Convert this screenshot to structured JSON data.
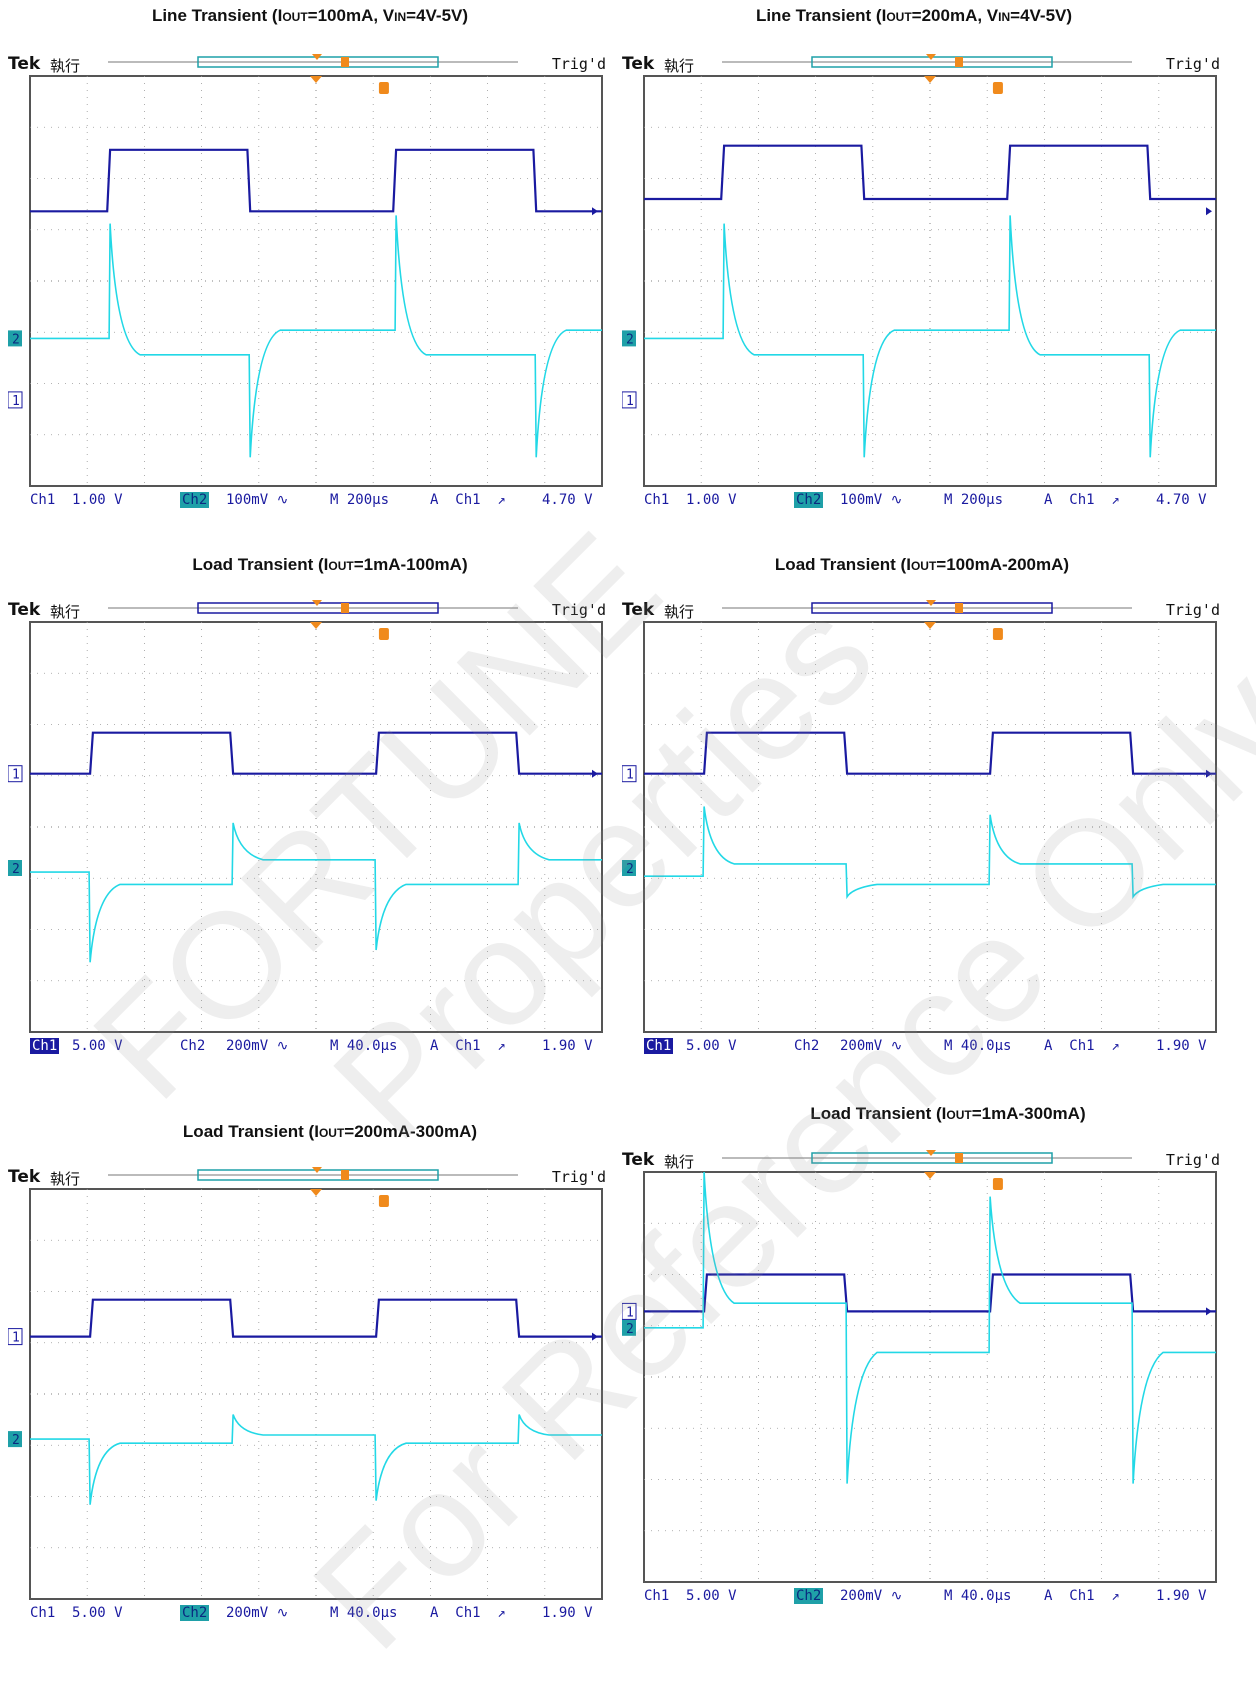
{
  "scopes": [
    {
      "title_pre": "Line Transient (I",
      "title_sub": "OUT",
      "title_mid": "=100mA, V",
      "title_sub2": "IN",
      "title_post": "=4V-5V)",
      "header": {
        "brand": "Tek",
        "state": "執行",
        "trig": "Trig'd"
      },
      "footer": {
        "ch1": "Ch1",
        "ch1_scale": "1.00 V",
        "ch2": "Ch2",
        "ch2_scale": "100mV ∿",
        "time": "M 200μs",
        "trig_src": "A  Ch1  ↗",
        "trig_level": "4.70 V",
        "active": "ch2"
      },
      "markers": {
        "ch1": "1",
        "ch2": "2"
      }
    },
    {
      "title_pre": "Line Transient (I",
      "title_sub": "OUT",
      "title_mid": "=200mA, V",
      "title_sub2": "IN",
      "title_post": "=4V-5V)",
      "header": {
        "brand": "Tek",
        "state": "執行",
        "trig": "Trig'd"
      },
      "footer": {
        "ch1": "Ch1",
        "ch1_scale": "1.00 V",
        "ch2": "Ch2",
        "ch2_scale": "100mV ∿",
        "time": "M 200μs",
        "trig_src": "A  Ch1  ↗",
        "trig_level": "4.70 V",
        "active": "ch2"
      },
      "markers": {
        "ch1": "1",
        "ch2": "2"
      }
    },
    {
      "title_pre": "Load Transient (I",
      "title_sub": "OUT",
      "title_mid": "=1mA-100mA)",
      "title_sub2": "",
      "title_post": "",
      "header": {
        "brand": "Tek",
        "state": "執行",
        "trig": "Trig'd"
      },
      "footer": {
        "ch1": "Ch1",
        "ch1_scale": "5.00 V",
        "ch2": "Ch2",
        "ch2_scale": "200mV ∿",
        "time": "M 40.0μs",
        "trig_src": "A  Ch1  ↗",
        "trig_level": "1.90 V",
        "active": "ch1"
      },
      "markers": {
        "ch1": "1",
        "ch2": "2"
      }
    },
    {
      "title_pre": "Load Transient (I",
      "title_sub": "OUT",
      "title_mid": "=100mA-200mA)",
      "title_sub2": "",
      "title_post": "",
      "header": {
        "brand": "Tek",
        "state": "執行",
        "trig": "Trig'd"
      },
      "footer": {
        "ch1": "Ch1",
        "ch1_scale": "5.00 V",
        "ch2": "Ch2",
        "ch2_scale": "200mV ∿",
        "time": "M 40.0μs",
        "trig_src": "A  Ch1  ↗",
        "trig_level": "1.90 V",
        "active": "ch1"
      },
      "markers": {
        "ch1": "1",
        "ch2": "2"
      }
    },
    {
      "title_pre": "Load Transient (I",
      "title_sub": "OUT",
      "title_mid": "=200mA-300mA)",
      "title_sub2": "",
      "title_post": "",
      "header": {
        "brand": "Tek",
        "state": "執行",
        "trig": "Trig'd"
      },
      "footer": {
        "ch1": "Ch1",
        "ch1_scale": "5.00 V",
        "ch2": "Ch2",
        "ch2_scale": "200mV ∿",
        "time": "M 40.0μs",
        "trig_src": "A  Ch1  ↗",
        "trig_level": "1.90 V",
        "active": "ch2"
      },
      "markers": {
        "ch1": "1",
        "ch2": "2"
      }
    },
    {
      "title_pre": "Load Transient (I",
      "title_sub": "OUT",
      "title_mid": "=1mA-300mA)",
      "title_sub2": "",
      "title_post": "",
      "header": {
        "brand": "Tek",
        "state": "執行",
        "trig": "Trig'd"
      },
      "footer": {
        "ch1": "Ch1",
        "ch1_scale": "5.00 V",
        "ch2": "Ch2",
        "ch2_scale": "200mV ∿",
        "time": "M 40.0μs",
        "trig_src": "A  Ch1  ↗",
        "trig_level": "1.90 V",
        "active": "ch2"
      },
      "markers": {
        "ch1": "1",
        "ch2": "2"
      }
    }
  ],
  "watermark": {
    "line1": "FORTUNE",
    "line2": "Properties",
    "line3": "For Reference Only"
  },
  "colors": {
    "ch1": "#1a1aa0",
    "ch2": "#22d8e6",
    "trigger": "#f08a1c",
    "grid": "#9a9a9a",
    "frame": "#555555"
  }
}
